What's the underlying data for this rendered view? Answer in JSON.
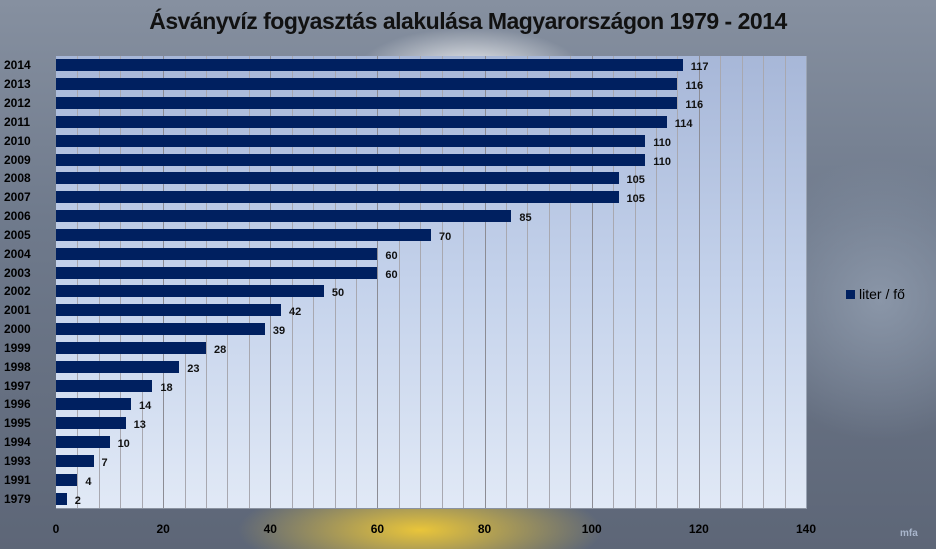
{
  "chart_data": {
    "type": "bar",
    "orientation": "horizontal",
    "title": "Ásványvíz fogyasztás alakulása Magyarországon 1979 - 2014",
    "xlabel": "",
    "ylabel": "",
    "xlim": [
      0,
      140
    ],
    "x_ticks": [
      0,
      20,
      40,
      60,
      80,
      100,
      120,
      140
    ],
    "grid": true,
    "legend_position": "right",
    "categories": [
      "2014",
      "2013",
      "2012",
      "2011",
      "2010",
      "2009",
      "2008",
      "2007",
      "2006",
      "2005",
      "2004",
      "2003",
      "2002",
      "2001",
      "2000",
      "1999",
      "1998",
      "1997",
      "1996",
      "1995",
      "1994",
      "1993",
      "1991",
      "1979"
    ],
    "series": [
      {
        "name": "liter / fő",
        "color": "#002060",
        "values": [
          117,
          116,
          116,
          114,
          110,
          110,
          105,
          105,
          85,
          70,
          60,
          60,
          50,
          42,
          39,
          28,
          23,
          18,
          14,
          13,
          10,
          7,
          4,
          2
        ]
      }
    ]
  },
  "legend": {
    "label": "liter / fő"
  },
  "colors": {
    "bar": "#002060"
  }
}
